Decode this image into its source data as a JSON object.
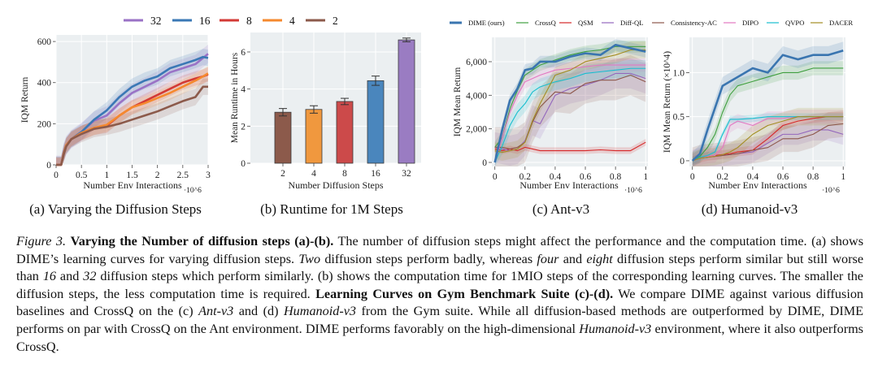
{
  "subcaptions": {
    "a": "(a) Varying the Diffusion Steps",
    "b": "(b) Runtime for 1M Steps",
    "c": "(c) Ant-v3",
    "d": "(d) Humanoid-v3"
  },
  "caption": [
    {
      "text": "Figure 3.",
      "style": "italic"
    },
    {
      "text": " ",
      "style": "normal"
    },
    {
      "text": "Varying the Number of diffusion steps (a)-(b).",
      "style": "bold"
    },
    {
      "text": " The number of diffusion steps might affect the performance and the computation time. (a) shows DIME’s learning curves for varying diffusion steps. ",
      "style": "normal"
    },
    {
      "text": "Two",
      "style": "italic"
    },
    {
      "text": " diffusion steps perform badly, whereas ",
      "style": "normal"
    },
    {
      "text": "four",
      "style": "italic"
    },
    {
      "text": " and ",
      "style": "normal"
    },
    {
      "text": "eight",
      "style": "italic"
    },
    {
      "text": " diffusion steps perform similar but still worse than ",
      "style": "normal"
    },
    {
      "text": "16",
      "style": "italic"
    },
    {
      "text": " and ",
      "style": "normal"
    },
    {
      "text": "32",
      "style": "italic"
    },
    {
      "text": " diffusion steps which perform similarly. (b) shows the computation time for 1MIO steps of the corresponding learning curves. The smaller the diffusion steps, the less computation time is required. ",
      "style": "normal"
    },
    {
      "text": "Learning Curves on Gym Benchmark Suite (c)-(d).",
      "style": "bold"
    },
    {
      "text": " We compare DIME against various diffusion baselines and CrossQ on the (c) ",
      "style": "normal"
    },
    {
      "text": "Ant-v3",
      "style": "italic"
    },
    {
      "text": " and (d) ",
      "style": "normal"
    },
    {
      "text": "Humanoid-v3",
      "style": "italic"
    },
    {
      "text": " from the Gym suite. While all diffusion-based methods are outperformed by DIME, DIME performs on par with CrossQ on the Ant environment. DIME performs favorably on the high-dimensional ",
      "style": "normal"
    },
    {
      "text": "Humanoid-v3",
      "style": "italic"
    },
    {
      "text": " environment, where it also outperforms CrossQ.",
      "style": "normal"
    }
  ],
  "chart_data": [
    {
      "id": "a",
      "type": "line",
      "xlabel": "Number Env Interactions",
      "x_multiplier": "·10^6",
      "ylabel": "IQM Return",
      "xlim": [
        0,
        3
      ],
      "ylim": [
        0,
        632
      ],
      "xticks": [
        0,
        0.5,
        1,
        1.5,
        2,
        2.5,
        3
      ],
      "xtick_labels": [
        "0",
        "0.5",
        "1",
        "1.5",
        "2",
        "2.5",
        "3"
      ],
      "yticks": [
        0,
        200,
        400,
        600
      ],
      "ytick_labels": [
        "0",
        "200",
        "400",
        "600"
      ],
      "grid": true,
      "legend": "top",
      "x": [
        0,
        0.1,
        0.15,
        0.2,
        0.3,
        0.5,
        0.75,
        1,
        1.25,
        1.5,
        1.75,
        2,
        2.25,
        2.5,
        2.75,
        2.9,
        3
      ],
      "series": [
        {
          "name": "32",
          "color": "#9a72c6",
          "values": [
            0,
            0,
            60,
            95,
            125,
            160,
            215,
            240,
            300,
            350,
            380,
            410,
            450,
            470,
            490,
            520,
            540
          ],
          "band": 45
        },
        {
          "name": "16",
          "color": "#3a78b5",
          "values": [
            0,
            0,
            60,
            95,
            125,
            160,
            220,
            265,
            330,
            380,
            410,
            430,
            470,
            490,
            510,
            525,
            520
          ],
          "band": 40
        },
        {
          "name": "8",
          "color": "#d33a35",
          "values": [
            0,
            0,
            55,
            95,
            125,
            155,
            180,
            190,
            240,
            280,
            310,
            340,
            370,
            400,
            420,
            430,
            440
          ],
          "band": 35
        },
        {
          "name": "4",
          "color": "#f5892e",
          "values": [
            0,
            0,
            55,
            95,
            125,
            155,
            180,
            195,
            240,
            280,
            300,
            325,
            350,
            380,
            410,
            430,
            445
          ],
          "band": 35
        },
        {
          "name": "2",
          "color": "#8c5a4b",
          "values": [
            0,
            0,
            50,
            90,
            125,
            150,
            175,
            185,
            200,
            220,
            240,
            260,
            285,
            310,
            330,
            380,
            380
          ],
          "band": 40
        }
      ]
    },
    {
      "id": "b",
      "type": "bar",
      "xlabel": "Number Diffusion Steps",
      "ylabel": "Mean Runtime in Hours",
      "ylim": [
        0,
        7.05
      ],
      "yticks": [
        0,
        2,
        4,
        6
      ],
      "ytick_labels": [
        "0",
        "2",
        "4",
        "6"
      ],
      "grid": true,
      "categories": [
        "2",
        "4",
        "8",
        "16",
        "32"
      ],
      "values": [
        2.75,
        2.9,
        3.33,
        4.45,
        6.65
      ],
      "errors": [
        0.2,
        0.2,
        0.17,
        0.25,
        0.1
      ],
      "colors": [
        "#8c5a4b",
        "#f0983e",
        "#cc4a4a",
        "#4a86bd",
        "#9a7cc2"
      ]
    },
    {
      "id": "c",
      "type": "line",
      "xlabel": "Number Env Interactions",
      "x_multiplier": "·10^6",
      "ylabel": "IQM Mean Return",
      "xlim": [
        -0.02,
        1.015
      ],
      "ylim": [
        -242,
        7450
      ],
      "xticks": [
        0,
        0.2,
        0.4,
        0.6,
        0.8,
        1
      ],
      "xtick_labels": [
        "0",
        "0.2",
        "0.4",
        "0.6",
        "0.8",
        "1"
      ],
      "yticks": [
        0,
        2000,
        4000,
        6000
      ],
      "ytick_labels": [
        "0",
        "2,000",
        "4,000",
        "6,000"
      ],
      "grid": true,
      "legend": "top",
      "x": [
        0,
        0.05,
        0.1,
        0.15,
        0.2,
        0.25,
        0.3,
        0.4,
        0.5,
        0.6,
        0.7,
        0.8,
        0.9,
        1
      ],
      "series": [
        {
          "name": "CrossQ",
          "color": "#3f9f3f",
          "values": [
            900,
            1500,
            3200,
            4300,
            5200,
            5500,
            5800,
            6100,
            6400,
            6600,
            6700,
            6900,
            6900,
            6900
          ],
          "band": 350
        },
        {
          "name": "QSM",
          "color": "#d62728",
          "values": [
            800,
            700,
            800,
            700,
            900,
            800,
            700,
            700,
            700,
            700,
            750,
            700,
            700,
            1200
          ],
          "band": 200
        },
        {
          "name": "Diff-QL",
          "color": "#9467bd",
          "values": [
            900,
            800,
            700,
            800,
            1300,
            2500,
            2300,
            4000,
            4400,
            4600,
            4900,
            5300,
            5300,
            5000
          ],
          "band": 900
        },
        {
          "name": "Consistency-AC",
          "color": "#8c564b",
          "values": [
            900,
            900,
            800,
            900,
            1200,
            2400,
            3300,
            4200,
            4100,
            4700,
            4900,
            4900,
            5200,
            4800
          ],
          "band": 1200
        },
        {
          "name": "DIPO",
          "color": "#e377c2",
          "values": [
            0,
            1500,
            3000,
            4000,
            4800,
            5000,
            5200,
            5500,
            5600,
            5700,
            5800,
            5800,
            5800,
            5800
          ],
          "band": 400
        },
        {
          "name": "QVPO",
          "color": "#17becf",
          "values": [
            0,
            1000,
            2200,
            3000,
            3500,
            4200,
            4500,
            4800,
            5000,
            5300,
            5400,
            5500,
            5600,
            5600
          ],
          "band": 500
        },
        {
          "name": "DACER",
          "color": "#a38d22",
          "values": [
            700,
            600,
            700,
            800,
            1200,
            2500,
            3500,
            5200,
            5500,
            6000,
            6200,
            6400,
            6700,
            6700
          ],
          "band": 500
        },
        {
          "name": "DIME (ours)",
          "color": "#3a75b0",
          "values": [
            0,
            2000,
            3700,
            4400,
            5500,
            5600,
            6000,
            6000,
            6300,
            6500,
            6400,
            7000,
            6800,
            6600
          ],
          "band": 350,
          "thick": true
        }
      ]
    },
    {
      "id": "d",
      "type": "line",
      "xlabel": "Number Env Interactions",
      "x_multiplier": "·10^6",
      "ylabel": "IQM Mean Return (×10^4)",
      "xlim": [
        -0.02,
        1.015
      ],
      "ylim": [
        -0.065,
        1.4
      ],
      "xticks": [
        0,
        0.2,
        0.4,
        0.6,
        0.8,
        1
      ],
      "xtick_labels": [
        "0",
        "0.2",
        "0.4",
        "0.6",
        "0.8",
        "1"
      ],
      "yticks": [
        0,
        0.5,
        1.0
      ],
      "ytick_labels": [
        "0",
        "0.5",
        "1.0"
      ],
      "grid": true,
      "x": [
        0,
        0.05,
        0.1,
        0.15,
        0.2,
        0.25,
        0.3,
        0.4,
        0.5,
        0.6,
        0.7,
        0.8,
        0.9,
        1
      ],
      "series": [
        {
          "name": "CrossQ",
          "color": "#3f9f3f",
          "values": [
            0,
            0.05,
            0.15,
            0.3,
            0.55,
            0.75,
            0.85,
            0.9,
            0.95,
            1.0,
            1.0,
            1.05,
            1.05,
            1.05
          ],
          "band": 0.08
        },
        {
          "name": "QSM",
          "color": "#d62728",
          "values": [
            0,
            0.03,
            0.05,
            0.06,
            0.07,
            0.08,
            0.1,
            0.12,
            0.25,
            0.4,
            0.45,
            0.48,
            0.5,
            0.5
          ],
          "band": 0.05
        },
        {
          "name": "Diff-QL",
          "color": "#9467bd",
          "values": [
            0,
            0.03,
            0.04,
            0.05,
            0.06,
            0.07,
            0.08,
            0.1,
            0.2,
            0.3,
            0.3,
            0.35,
            0.35,
            0.3
          ],
          "band": 0.12
        },
        {
          "name": "Consistency-AC",
          "color": "#8c564b",
          "values": [
            0,
            0.03,
            0.04,
            0.05,
            0.06,
            0.07,
            0.08,
            0.12,
            0.15,
            0.25,
            0.25,
            0.3,
            0.4,
            0.42
          ],
          "band": 0.15
        },
        {
          "name": "DIPO",
          "color": "#e377c2",
          "values": [
            0,
            0.03,
            0.05,
            0.06,
            0.15,
            0.4,
            0.45,
            0.4,
            0.48,
            0.48,
            0.5,
            0.5,
            0.5,
            0.5
          ],
          "band": 0.08
        },
        {
          "name": "QVPO",
          "color": "#17becf",
          "values": [
            0,
            0.04,
            0.06,
            0.1,
            0.3,
            0.47,
            0.47,
            0.48,
            0.5,
            0.5,
            0.5,
            0.5,
            0.5,
            0.5
          ],
          "band": 0.04
        },
        {
          "name": "DACER",
          "color": "#a38d22",
          "values": [
            0,
            0.03,
            0.04,
            0.05,
            0.07,
            0.1,
            0.15,
            0.3,
            0.4,
            0.45,
            0.5,
            0.5,
            0.5,
            0.5
          ],
          "band": 0.1
        },
        {
          "name": "DIME (ours)",
          "color": "#3a75b0",
          "values": [
            0,
            0.08,
            0.35,
            0.6,
            0.85,
            0.9,
            0.95,
            1.05,
            1.0,
            1.2,
            1.15,
            1.2,
            1.2,
            1.25
          ],
          "band": 0.1,
          "thick": true
        }
      ]
    }
  ],
  "legends": {
    "ab": [
      "32",
      "16",
      "8",
      "4",
      "2"
    ],
    "cd": [
      "DIME (ours)",
      "CrossQ",
      "QSM",
      "Diff-QL",
      "Consistency-AC",
      "DIPO",
      "QVPO",
      "DACER"
    ]
  }
}
